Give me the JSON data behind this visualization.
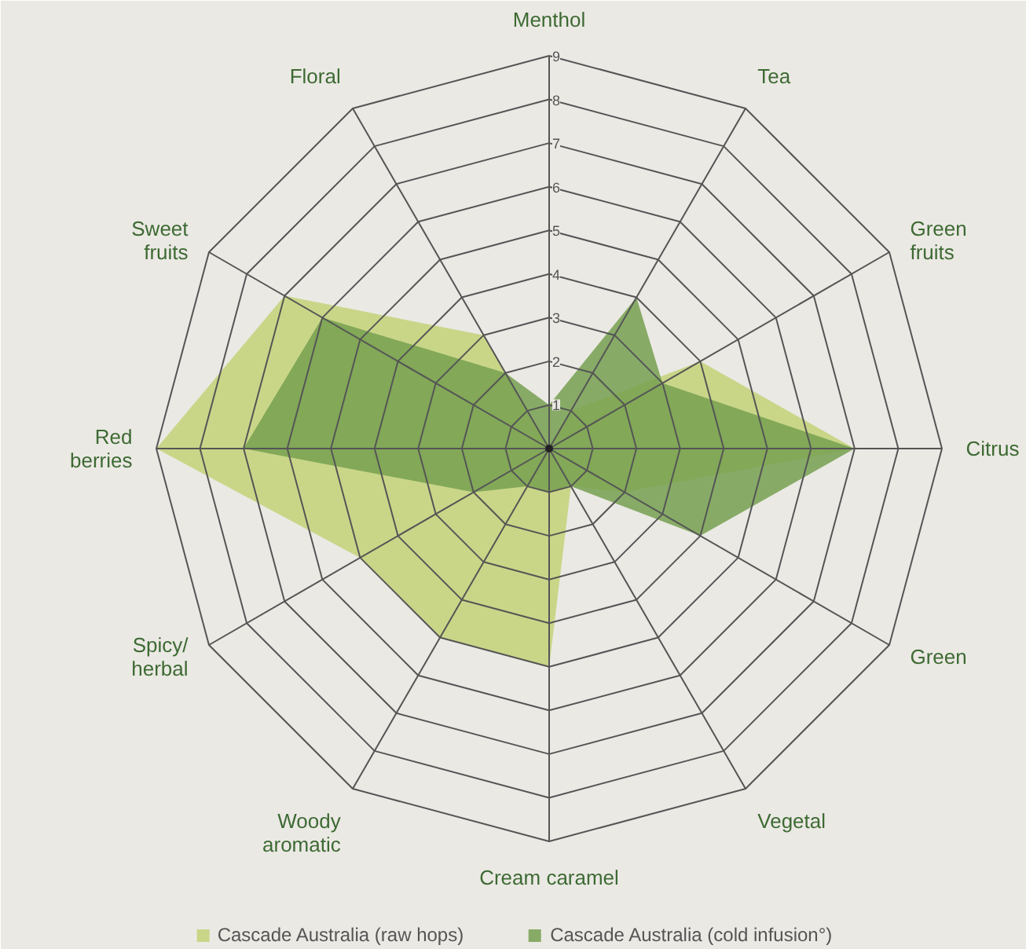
{
  "chart_data": {
    "type": "radar",
    "categories": [
      "Menthol",
      "Tea",
      "Green\nfruits",
      "Citrus",
      "Green",
      "Vegetal",
      "Cream caramel",
      "Woody\naromatic",
      "Spicy/\nherbal",
      "Red\nberries",
      "Sweet\nfruits",
      "Floral"
    ],
    "series": [
      {
        "name": "Cascade Australia (raw hops)",
        "color": "#c3d278",
        "values": [
          0,
          1,
          4,
          7,
          2,
          1,
          5,
          5,
          5,
          9,
          7,
          3
        ]
      },
      {
        "name": "Cascade Australia (cold infusion°)",
        "color": "#76a050",
        "values": [
          1,
          4,
          3,
          7,
          4,
          1,
          1,
          1,
          2,
          7,
          6,
          2
        ]
      }
    ],
    "ylim": [
      0,
      9
    ],
    "yticks": [
      1,
      2,
      3,
      4,
      5,
      6,
      7,
      8,
      9
    ],
    "legend": "bottom"
  }
}
